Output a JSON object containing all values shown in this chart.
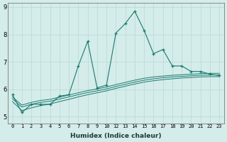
{
  "xlabel": "Humidex (Indice chaleur)",
  "background_color": "#d4ecea",
  "grid_color": "#b8d8d5",
  "line_color": "#1a7a6e",
  "x_main": [
    0,
    1,
    2,
    3,
    4,
    5,
    6,
    7,
    8,
    9,
    10,
    11,
    12,
    13,
    14,
    15,
    16,
    17,
    18,
    19,
    20,
    21,
    22
  ],
  "y_main": [
    5.8,
    5.15,
    5.45,
    5.45,
    5.45,
    5.75,
    5.8,
    6.85,
    7.75,
    6.05,
    6.15,
    8.05,
    8.4,
    8.85,
    8.15,
    7.3,
    7.45,
    6.85,
    6.85,
    6.65,
    6.65,
    6.55,
    6.5
  ],
  "x_s1": [
    0,
    1,
    2,
    3,
    4,
    5,
    6,
    7,
    8,
    9,
    10,
    11,
    12,
    13,
    14,
    15,
    16,
    17,
    18,
    19,
    20,
    21,
    22
  ],
  "y_s1": [
    5.65,
    5.35,
    5.45,
    5.52,
    5.56,
    5.64,
    5.72,
    5.8,
    5.88,
    5.94,
    6.01,
    6.1,
    6.18,
    6.26,
    6.33,
    6.38,
    6.42,
    6.45,
    6.47,
    6.49,
    6.51,
    6.52,
    6.52
  ],
  "x_s2": [
    0,
    1,
    2,
    3,
    4,
    5,
    6,
    7,
    8,
    9,
    10,
    11,
    12,
    13,
    14,
    15,
    16,
    17,
    18,
    19,
    20,
    21,
    22
  ],
  "y_s2": [
    5.55,
    5.22,
    5.32,
    5.4,
    5.46,
    5.55,
    5.63,
    5.72,
    5.8,
    5.87,
    5.94,
    6.03,
    6.11,
    6.19,
    6.26,
    6.31,
    6.35,
    6.38,
    6.41,
    6.43,
    6.45,
    6.46,
    6.46
  ],
  "x_s3": [
    0,
    1,
    2,
    3,
    4,
    5,
    6,
    7,
    8,
    9,
    10,
    11,
    12,
    13,
    14,
    15,
    16,
    17,
    18,
    19,
    20,
    21,
    22
  ],
  "y_s3": [
    5.72,
    5.42,
    5.52,
    5.59,
    5.63,
    5.71,
    5.79,
    5.87,
    5.95,
    6.01,
    6.08,
    6.17,
    6.25,
    6.33,
    6.4,
    6.45,
    6.48,
    6.51,
    6.53,
    6.55,
    6.57,
    6.58,
    6.58
  ],
  "ylim": [
    4.75,
    9.15
  ],
  "xlim": [
    -0.5,
    22.5
  ],
  "yticks": [
    5,
    6,
    7,
    8,
    9
  ],
  "xtick_positions": [
    0,
    1,
    2,
    3,
    4,
    5,
    6,
    7,
    8,
    9,
    10,
    11,
    12,
    13,
    14,
    15,
    16,
    17,
    18,
    19,
    20,
    21,
    22
  ],
  "xtick_labels": [
    "0",
    "1",
    "2",
    "3",
    "4",
    "5",
    "6",
    "7",
    "8",
    "9",
    "10",
    "12",
    "13",
    "14",
    "15",
    "16",
    "17",
    "18",
    "19",
    "20",
    "21",
    "22",
    "23"
  ]
}
